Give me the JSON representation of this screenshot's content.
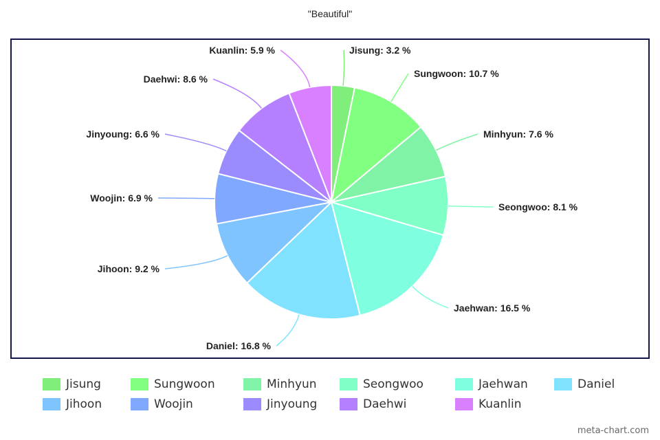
{
  "watermark": "meta-chart.com",
  "chart_data": {
    "type": "pie",
    "title": "\"Beautiful\"",
    "legend_position": "bottom",
    "slices": [
      {
        "name": "Jisung",
        "value": 3.2,
        "label": "Jisung: 3.2 %",
        "color": "#80ee7a"
      },
      {
        "name": "Sungwoon",
        "value": 10.7,
        "label": "Sungwoon: 10.7 %",
        "color": "#80ff80"
      },
      {
        "name": "Minhyun",
        "value": 7.6,
        "label": "Minhyun: 7.6 %",
        "color": "#80f3a6"
      },
      {
        "name": "Seongwoo",
        "value": 8.1,
        "label": "Seongwoo: 8.1 %",
        "color": "#80ffc6"
      },
      {
        "name": "Jaehwan",
        "value": 16.5,
        "label": "Jaehwan: 16.5 %",
        "color": "#80ffe0"
      },
      {
        "name": "Daniel",
        "value": 16.8,
        "label": "Daniel: 16.8 %",
        "color": "#80e2ff"
      },
      {
        "name": "Jihoon",
        "value": 9.2,
        "label": "Jihoon: 9.2 %",
        "color": "#80c4ff"
      },
      {
        "name": "Woojin",
        "value": 6.9,
        "label": "Woojin: 6.9 %",
        "color": "#80a8ff"
      },
      {
        "name": "Jinyoung",
        "value": 6.6,
        "label": "Jinyoung: 6.6 %",
        "color": "#9a8cff"
      },
      {
        "name": "Daehwi",
        "value": 8.6,
        "label": "Daehwi: 8.6 %",
        "color": "#b480ff"
      },
      {
        "name": "Kuanlin",
        "value": 5.9,
        "label": "Kuanlin: 5.9 %",
        "color": "#d880ff"
      }
    ]
  }
}
